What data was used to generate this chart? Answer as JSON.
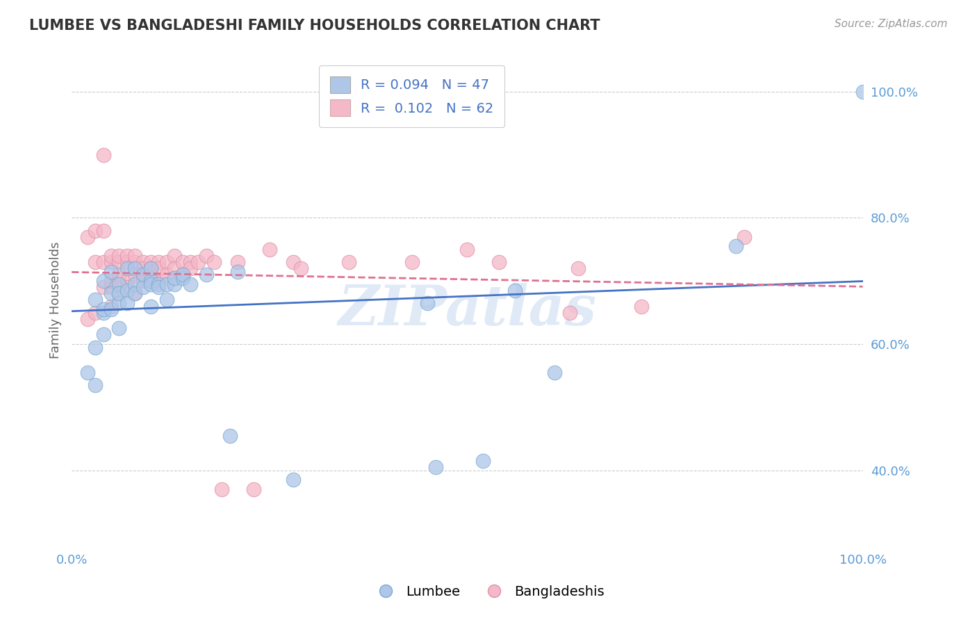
{
  "title": "LUMBEE VS BANGLADESHI FAMILY HOUSEHOLDS CORRELATION CHART",
  "source_text": "Source: ZipAtlas.com",
  "ylabel": "Family Households",
  "yticks": [
    0.4,
    0.6,
    0.8,
    1.0
  ],
  "ytick_labels": [
    "40.0%",
    "60.0%",
    "80.0%",
    "100.0%"
  ],
  "xlim": [
    0,
    1
  ],
  "ylim": [
    0.28,
    1.06
  ],
  "lumbee_R": 0.094,
  "lumbee_N": 47,
  "bangladeshi_R": 0.102,
  "bangladeshi_N": 62,
  "lumbee_color": "#aec6e8",
  "bangladeshi_color": "#f4b8c8",
  "lumbee_line_color": "#4472c4",
  "bangladeshi_line_color": "#e07090",
  "lumbee_x": [
    0.02,
    0.03,
    0.03,
    0.03,
    0.04,
    0.04,
    0.04,
    0.04,
    0.05,
    0.05,
    0.05,
    0.06,
    0.06,
    0.06,
    0.06,
    0.07,
    0.07,
    0.07,
    0.08,
    0.08,
    0.08,
    0.09,
    0.09,
    0.1,
    0.1,
    0.1,
    0.1,
    0.11,
    0.11,
    0.12,
    0.12,
    0.13,
    0.13,
    0.14,
    0.14,
    0.15,
    0.17,
    0.2,
    0.21,
    0.28,
    0.45,
    0.46,
    0.52,
    0.56,
    0.61,
    0.84,
    1.0
  ],
  "lumbee_y": [
    0.555,
    0.535,
    0.67,
    0.595,
    0.7,
    0.65,
    0.655,
    0.615,
    0.68,
    0.715,
    0.655,
    0.695,
    0.665,
    0.68,
    0.625,
    0.72,
    0.685,
    0.665,
    0.72,
    0.695,
    0.68,
    0.69,
    0.71,
    0.7,
    0.66,
    0.695,
    0.72,
    0.695,
    0.69,
    0.695,
    0.67,
    0.695,
    0.705,
    0.705,
    0.71,
    0.695,
    0.71,
    0.455,
    0.715,
    0.385,
    0.665,
    0.405,
    0.415,
    0.685,
    0.555,
    0.755,
    1.0
  ],
  "bangladeshi_x": [
    0.02,
    0.02,
    0.03,
    0.03,
    0.03,
    0.04,
    0.04,
    0.04,
    0.04,
    0.05,
    0.05,
    0.05,
    0.05,
    0.05,
    0.06,
    0.06,
    0.06,
    0.06,
    0.06,
    0.07,
    0.07,
    0.07,
    0.07,
    0.08,
    0.08,
    0.08,
    0.08,
    0.09,
    0.09,
    0.09,
    0.09,
    0.1,
    0.1,
    0.1,
    0.11,
    0.11,
    0.11,
    0.12,
    0.12,
    0.13,
    0.13,
    0.14,
    0.14,
    0.15,
    0.15,
    0.16,
    0.17,
    0.18,
    0.19,
    0.21,
    0.23,
    0.25,
    0.28,
    0.29,
    0.35,
    0.43,
    0.5,
    0.54,
    0.63,
    0.64,
    0.72,
    0.85
  ],
  "bangladeshi_y": [
    0.64,
    0.77,
    0.73,
    0.65,
    0.78,
    0.9,
    0.69,
    0.73,
    0.78,
    0.69,
    0.73,
    0.66,
    0.74,
    0.7,
    0.73,
    0.7,
    0.74,
    0.68,
    0.71,
    0.73,
    0.7,
    0.74,
    0.69,
    0.73,
    0.71,
    0.68,
    0.74,
    0.73,
    0.71,
    0.7,
    0.72,
    0.73,
    0.71,
    0.72,
    0.73,
    0.7,
    0.72,
    0.73,
    0.71,
    0.74,
    0.72,
    0.73,
    0.71,
    0.73,
    0.72,
    0.73,
    0.74,
    0.73,
    0.37,
    0.73,
    0.37,
    0.75,
    0.73,
    0.72,
    0.73,
    0.73,
    0.75,
    0.73,
    0.65,
    0.72,
    0.66,
    0.77
  ],
  "watermark": "ZIPatlas",
  "grid_color": "#cccccc",
  "background_color": "#ffffff"
}
